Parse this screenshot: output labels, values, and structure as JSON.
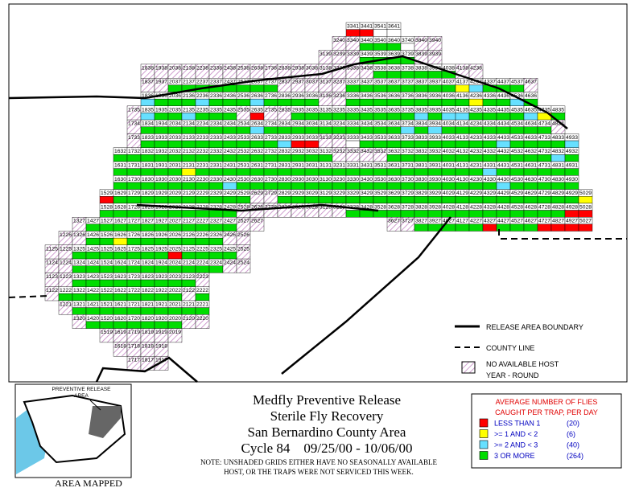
{
  "map": {
    "rows": [
      {
        "labels": [
          "3341",
          "3441",
          "3541",
          "3641"
        ],
        "status": "00ww"
      },
      {
        "labels": [
          "3240",
          "3340",
          "3440",
          "3540",
          "3640",
          "3740",
          "3840",
          "3940"
        ],
        "status": "hh333whh"
      },
      {
        "labels": [
          "3139",
          "3239",
          "3339",
          "3439",
          "3539",
          "3639",
          "3739",
          "3839",
          "3939"
        ],
        "status": "hhh3333hh"
      },
      {
        "labels": [
          "1838",
          "1938",
          "2038",
          "2138",
          "2238",
          "2338",
          "2438",
          "2538",
          "2638",
          "2738",
          "2838",
          "2938",
          "3038",
          "3138",
          "3238",
          "3338",
          "3438",
          "3538",
          "3638",
          "3738",
          "3838",
          "3938",
          "4038",
          "4138",
          "4238"
        ],
        "status": "hhhhhhhhhhhhhhhhh333333hh"
      },
      {
        "labels": [
          "1837",
          "1937",
          "2037",
          "2137",
          "2237",
          "2337",
          "2437",
          "2537",
          "2637",
          "2737",
          "2837",
          "2937",
          "3037",
          "3137",
          "3237",
          "3337",
          "3437",
          "3537",
          "3637",
          "3737",
          "3837",
          "3937",
          "4037",
          "4137",
          "4237",
          "4337",
          "4437",
          "4537",
          "4637"
        ],
        "status": "hh33333333hhhhh3333333312333h"
      },
      {
        "labels": [
          "1836",
          "1936",
          "2036",
          "2136",
          "2236",
          "2336",
          "2436",
          "2536",
          "2636",
          "2736",
          "2836",
          "2936",
          "3036",
          "3136",
          "3236",
          "3336",
          "3436",
          "3536",
          "3636",
          "3736",
          "3836",
          "3936",
          "4036",
          "4136",
          "4236",
          "4336",
          "4436",
          "4536",
          "4636"
        ],
        "status": "2333233323333hh33333333313323"
      },
      {
        "labels": [
          "1735",
          "1835",
          "1935",
          "2035",
          "2135",
          "2235",
          "2335",
          "2435",
          "2535",
          "2635",
          "2735",
          "2835",
          "2935",
          "3035",
          "3135",
          "3235",
          "3335",
          "3435",
          "3535",
          "3635",
          "3735",
          "3835",
          "3935",
          "4035",
          "4135",
          "4235",
          "4335",
          "4435",
          "4535",
          "4635",
          "4735",
          "4835"
        ],
        "status": "h2332333h0hh33333333323223333213"
      },
      {
        "labels": [
          "1734",
          "1834",
          "1934",
          "2034",
          "2134",
          "2234",
          "2334",
          "2434",
          "2534",
          "2634",
          "2734",
          "2834",
          "2934",
          "3034",
          "3134",
          "3234",
          "3334",
          "3434",
          "3534",
          "3634",
          "3734",
          "3834",
          "3934",
          "4034",
          "4134",
          "4234",
          "4334",
          "4434",
          "4534",
          "4634",
          "4734",
          "4834"
        ],
        "status": "h333333332333333333323233333333h"
      },
      {
        "labels": [
          "1733",
          "1833",
          "1933",
          "2033",
          "2133",
          "2233",
          "2333",
          "2433",
          "2533",
          "2633",
          "2733",
          "2833",
          "2933",
          "3033",
          "3133",
          "3233",
          "3333",
          "3433",
          "3533",
          "3633",
          "3733",
          "3833",
          "3933",
          "4033",
          "4133",
          "4233",
          "4333",
          "4433",
          "4533",
          "4633",
          "4733",
          "4833",
          "4933"
        ],
        "status": "h3333333333200hhw3333333333233332"
      },
      {
        "labels": [
          "1632",
          "1732",
          "1832",
          "1932",
          "2032",
          "2132",
          "2232",
          "2332",
          "2432",
          "2532",
          "2632",
          "2732",
          "2832",
          "2932",
          "3032",
          "3132",
          "3232",
          "3332",
          "3432",
          "3532",
          "3632",
          "3732",
          "3832",
          "3932",
          "4032",
          "4132",
          "4232",
          "4332",
          "4432",
          "4532",
          "4632",
          "4732",
          "4832",
          "4932"
        ],
        "status": "3333333333333333hhhh33333333333323"
      },
      {
        "labels": [
          "1631",
          "1731",
          "1831",
          "1931",
          "2031",
          "2131",
          "2231",
          "2331",
          "2431",
          "2531",
          "2631",
          "2731",
          "2831",
          "2931",
          "3031",
          "3131",
          "3231",
          "3331",
          "3431",
          "3531",
          "3631",
          "3731",
          "3831",
          "3931",
          "4031",
          "4131",
          "4231",
          "4331",
          "4431",
          "4531",
          "4631",
          "4731",
          "4831",
          "4931"
        ],
        "status": "3333313333333333333333333332333333"
      },
      {
        "labels": [
          "1630",
          "1730",
          "1830",
          "1930",
          "2030",
          "2130",
          "2230",
          "2330",
          "2430",
          "2530",
          "2630",
          "2730",
          "2830",
          "2930",
          "3030",
          "3130",
          "3230",
          "3330",
          "3430",
          "3530",
          "3630",
          "3730",
          "3830",
          "3930",
          "4030",
          "4130",
          "4230",
          "4330",
          "4430",
          "4530",
          "4630",
          "4730",
          "4830",
          "4930"
        ],
        "status": "3333333323333333333333333333233333"
      },
      {
        "labels": [
          "1529",
          "1629",
          "1729",
          "1829",
          "1929",
          "2029",
          "2129",
          "2229",
          "2329",
          "2429",
          "2529",
          "2629",
          "2729",
          "2829",
          "2929",
          "3029",
          "3129",
          "3229",
          "3329",
          "3429",
          "3529",
          "3629",
          "3729",
          "3829",
          "3929",
          "4029",
          "4129",
          "4229",
          "4329",
          "4429",
          "4529",
          "4629",
          "4729",
          "4829",
          "4929",
          "5029"
        ],
        "status": "03333333333hh33333333333333333333331"
      },
      {
        "labels": [
          "1528",
          "1628",
          "1728",
          "1828",
          "1928",
          "2028",
          "2128",
          "2228",
          "2328",
          "2428",
          "2528",
          "2628",
          "2728",
          "2828",
          "2928",
          "3028",
          "3128",
          "3228",
          "3328",
          "3428",
          "3528",
          "3628",
          "3728",
          "3828",
          "3928",
          "4028",
          "4128",
          "4228",
          "4328",
          "4428",
          "4528",
          "4628",
          "4728",
          "4828",
          "4928",
          "5028"
        ],
        "status": "3333333333hhhhhhhh333333333333333300"
      },
      {
        "labels": [
          "1327",
          "1427",
          "1527",
          "1627",
          "1727",
          "1827",
          "1927",
          "2027",
          "2127",
          "2227",
          "2327",
          "2427",
          "2527",
          "2627",
          "3627",
          "3727",
          "3827",
          "3927",
          "4027",
          "4127",
          "4227",
          "4327",
          "4427",
          "4527",
          "4627",
          "4727",
          "4827",
          "4927",
          "5027"
        ],
        "status": "h33333333333hhhh3333303330000"
      },
      {
        "labels": [
          "1226",
          "1326",
          "1426",
          "1526",
          "1626",
          "1726",
          "1826",
          "1926",
          "2026",
          "2126",
          "2226",
          "2326",
          "2426",
          "2526"
        ],
        "status": "hh3313333333hh"
      },
      {
        "labels": [
          "1125",
          "1225",
          "1325",
          "1425",
          "1525",
          "1625",
          "1725",
          "1825",
          "1925",
          "2025",
          "2125",
          "2225",
          "2325",
          "2425",
          "2525"
        ],
        "status": "hh333333303333h"
      },
      {
        "labels": [
          "1124",
          "1224",
          "1324",
          "1424",
          "1524",
          "1624",
          "1724",
          "1824",
          "1924",
          "2024",
          "2124",
          "2224",
          "2324",
          "2424",
          "2524"
        ],
        "status": "hh33333333333hh"
      },
      {
        "labels": [
          "1123",
          "1223",
          "1323",
          "1423",
          "1523",
          "1623",
          "1723",
          "1823",
          "1923",
          "2023",
          "2123",
          "2223"
        ],
        "status": "hh333333333h"
      },
      {
        "labels": [
          "1122",
          "1222",
          "1322",
          "1422",
          "1522",
          "1622",
          "1722",
          "1822",
          "1922",
          "2022",
          "2122",
          "2222"
        ],
        "status": "h333333333h3"
      },
      {
        "labels": [
          "1221",
          "1321",
          "1421",
          "1521",
          "1621",
          "1721",
          "1821",
          "1921",
          "2021",
          "2121",
          "2221"
        ],
        "status": "h3333333333"
      },
      {
        "labels": [
          "1320",
          "1420",
          "1520",
          "1620",
          "1720",
          "1820",
          "1920",
          "2020",
          "2120",
          "2220"
        ],
        "status": "h3333333hh"
      },
      {
        "labels": [
          "1519",
          "1619",
          "1719",
          "1819",
          "1919",
          "2019"
        ],
        "status": "hhhhhh"
      },
      {
        "labels": [
          "1618",
          "1718",
          "1818",
          "1918"
        ],
        "status": "hhhh"
      },
      {
        "labels": [
          "1717",
          "1817",
          "1917"
        ],
        "status": "hhh"
      }
    ]
  },
  "map_legend": {
    "boundary": "RELEASE AREA BOUNDARY",
    "county": "COUNTY LINE",
    "hatch_line1": "NO AVAILABLE HOST",
    "hatch_line2": "YEAR - ROUND"
  },
  "inset": {
    "label_line1": "PREVENTIVE RELEASE",
    "label_line2": "AREA",
    "caption": "AREA MAPPED"
  },
  "title": {
    "line1": "Medfly Preventive Release",
    "line2": "Sterile Fly Recovery",
    "line3": "San Bernardino County Area",
    "line4": "Cycle 84    09/25/00 - 10/06/00"
  },
  "note": {
    "line1": "NOTE: UNSHADED GRIDS EITHER HAVE NO SEASONALLY AVAILABLE",
    "line2": "HOST, OR THE TRAPS WERE NOT SERVICED THIS WEEK."
  },
  "key": {
    "title_line1": "AVERAGE NUMBER OF FLIES",
    "title_line2": "CAUGHT PER TRAP, PER DAY",
    "items": [
      {
        "label": "LESS THAN 1",
        "count": "(20)",
        "color": "#ff0000"
      },
      {
        "label": ">= 1 AND < 2",
        "count": "(6)",
        "color": "#ffff00"
      },
      {
        "label": ">= 2 AND < 3",
        "count": "(40)",
        "color": "#66e0ff"
      },
      {
        "label": "3 OR MORE",
        "count": "(264)",
        "color": "#00dd00"
      }
    ]
  }
}
